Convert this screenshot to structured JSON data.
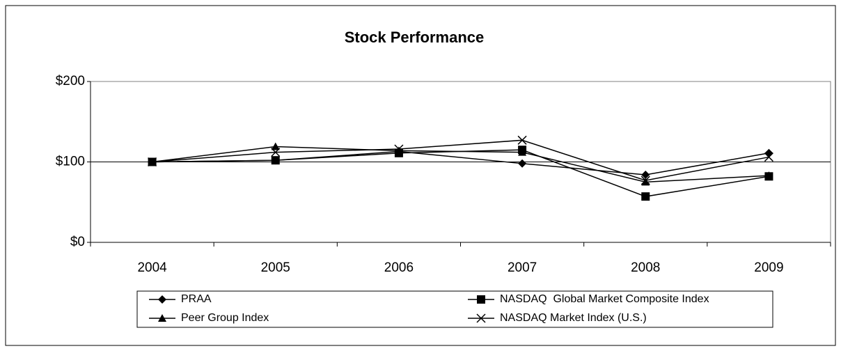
{
  "chart_data": {
    "type": "line",
    "title": "Stock Performance",
    "categories": [
      "2004",
      "2005",
      "2006",
      "2007",
      "2008",
      "2009"
    ],
    "series": [
      {
        "name": "PRAA",
        "color": "#000000",
        "marker": "diamond",
        "values": [
          100,
          102,
          113,
          98,
          84,
          111
        ]
      },
      {
        "name": "NASDAQ  Global Market Composite Index",
        "color": "#000000",
        "marker": "square",
        "values": [
          100,
          102,
          111,
          115,
          57,
          82
        ]
      },
      {
        "name": "Peer Group Index",
        "color": "#000000",
        "marker": "triangle",
        "values": [
          100,
          119,
          114,
          112,
          75,
          83
        ]
      },
      {
        "name": "NASDAQ Market Index (U.S.)",
        "color": "#000000",
        "marker": "x",
        "values": [
          100,
          112,
          116,
          127,
          77,
          106
        ]
      }
    ],
    "ylim": [
      0,
      200
    ],
    "yticks": [
      {
        "value": 0,
        "label": "$0"
      },
      {
        "value": 100,
        "label": "$100"
      },
      {
        "value": 200,
        "label": "$200"
      }
    ],
    "grid": true,
    "legend": "bottom"
  }
}
